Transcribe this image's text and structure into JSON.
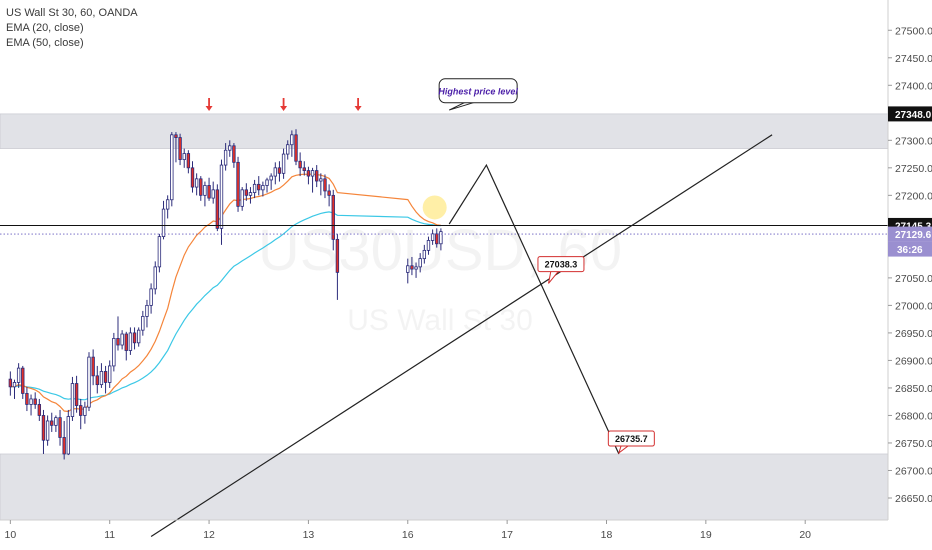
{
  "chart_title": "US Wall St 30, 60, OANDA",
  "indicators": [
    "EMA (20, close)",
    "EMA (50, close)"
  ],
  "watermark": {
    "symbol": "US30USD, 60",
    "name": "US Wall St 30"
  },
  "colors": {
    "up_candle": "#ffffff",
    "down_candle": "#e0312a",
    "candle_outline": "#2b2b7a",
    "ema20": "#f5853a",
    "ema50": "#3bc8e6",
    "zone_fill": "#dcdde3",
    "trend_line": "#222222",
    "arrow": "#e53935",
    "current_price_bg": "#9a8fd0",
    "callout_text": "#4b1fa8",
    "callout_red": "#d32f2f"
  },
  "chart_data": {
    "type": "candlestick",
    "symbol": "US Wall St 30",
    "timeframe": "60",
    "source": "OANDA",
    "x": {
      "ticks": [
        {
          "label": "10",
          "t": 0
        },
        {
          "label": "11",
          "t": 24
        },
        {
          "label": "12",
          "t": 48
        },
        {
          "label": "13",
          "t": 72
        },
        {
          "label": "16",
          "t": 96
        },
        {
          "label": "17",
          "t": 120
        },
        {
          "label": "18",
          "t": 144
        },
        {
          "label": "19",
          "t": 168
        },
        {
          "label": "20",
          "t": 192
        }
      ],
      "range": [
        -2.5,
        212
      ]
    },
    "y": {
      "range": [
        26610,
        27555
      ],
      "ticks": [
        26650,
        26700,
        26750,
        26800,
        26850,
        26900,
        26950,
        27000,
        27050,
        27100,
        27150,
        27200,
        27250,
        27300,
        27350,
        27400,
        27450,
        27500
      ]
    },
    "candles": [
      [
        26866,
        26880,
        26836,
        26852
      ],
      [
        26852,
        26865,
        26830,
        26860
      ],
      [
        26860,
        26895,
        26850,
        26886
      ],
      [
        26886,
        26890,
        26830,
        26840
      ],
      [
        26840,
        26852,
        26808,
        26820
      ],
      [
        26820,
        26838,
        26800,
        26830
      ],
      [
        26830,
        26842,
        26812,
        26820
      ],
      [
        26820,
        26830,
        26790,
        26800
      ],
      [
        26800,
        26810,
        26730,
        26755
      ],
      [
        26755,
        26800,
        26745,
        26790
      ],
      [
        26790,
        26805,
        26770,
        26782
      ],
      [
        26782,
        26800,
        26770,
        26796
      ],
      [
        26796,
        26810,
        26745,
        26760
      ],
      [
        26760,
        26790,
        26720,
        26730
      ],
      [
        26730,
        26810,
        26728,
        26798
      ],
      [
        26798,
        26870,
        26790,
        26858
      ],
      [
        26858,
        26872,
        26805,
        26818
      ],
      [
        26818,
        26830,
        26775,
        26800
      ],
      [
        26800,
        26825,
        26785,
        26815
      ],
      [
        26815,
        26915,
        26808,
        26906
      ],
      [
        26906,
        26920,
        26855,
        26872
      ],
      [
        26872,
        26890,
        26840,
        26856
      ],
      [
        26856,
        26895,
        26850,
        26880
      ],
      [
        26880,
        26890,
        26840,
        26860
      ],
      [
        26860,
        26900,
        26850,
        26890
      ],
      [
        26890,
        26950,
        26880,
        26940
      ],
      [
        26940,
        26980,
        26918,
        26928
      ],
      [
        26928,
        26955,
        26920,
        26948
      ],
      [
        26948,
        26952,
        26900,
        26918
      ],
      [
        26918,
        26960,
        26910,
        26950
      ],
      [
        26950,
        26960,
        26920,
        26932
      ],
      [
        26932,
        26960,
        26925,
        26955
      ],
      [
        26955,
        26990,
        26945,
        26980
      ],
      [
        26980,
        27010,
        26960,
        27000
      ],
      [
        27000,
        27040,
        26985,
        27030
      ],
      [
        27030,
        27080,
        27020,
        27070
      ],
      [
        27070,
        27130,
        27060,
        27125
      ],
      [
        27125,
        27190,
        27120,
        27175
      ],
      [
        27175,
        27200,
        27158,
        27192
      ],
      [
        27192,
        27315,
        27180,
        27310
      ],
      [
        27310,
        27315,
        27260,
        27305
      ],
      [
        27305,
        27312,
        27255,
        27265
      ],
      [
        27265,
        27285,
        27250,
        27276
      ],
      [
        27276,
        27282,
        27240,
        27250
      ],
      [
        27250,
        27262,
        27205,
        27215
      ],
      [
        27215,
        27240,
        27200,
        27230
      ],
      [
        27230,
        27235,
        27190,
        27200
      ],
      [
        27200,
        27225,
        27180,
        27218
      ],
      [
        27218,
        27232,
        27190,
        27195
      ],
      [
        27195,
        27225,
        27185,
        27210
      ],
      [
        27210,
        27220,
        27135,
        27140
      ],
      [
        27140,
        27265,
        27110,
        27255
      ],
      [
        27255,
        27295,
        27245,
        27282
      ],
      [
        27282,
        27300,
        27270,
        27290
      ],
      [
        27290,
        27295,
        27250,
        27260
      ],
      [
        27260,
        27270,
        27170,
        27180
      ],
      [
        27180,
        27215,
        27172,
        27210
      ],
      [
        27210,
        27222,
        27190,
        27200
      ],
      [
        27200,
        27215,
        27185,
        27205
      ],
      [
        27205,
        27228,
        27195,
        27220
      ],
      [
        27220,
        27235,
        27200,
        27210
      ],
      [
        27210,
        27225,
        27198,
        27218
      ],
      [
        27218,
        27232,
        27205,
        27228
      ],
      [
        27228,
        27240,
        27210,
        27235
      ],
      [
        27235,
        27260,
        27220,
        27250
      ],
      [
        27250,
        27262,
        27225,
        27240
      ],
      [
        27240,
        27285,
        27230,
        27275
      ],
      [
        27275,
        27300,
        27265,
        27292
      ],
      [
        27292,
        27318,
        27270,
        27310
      ],
      [
        27310,
        27320,
        27255,
        27262
      ],
      [
        27262,
        27278,
        27235,
        27250
      ],
      [
        27250,
        27262,
        27236,
        27245
      ],
      [
        27245,
        27252,
        27220,
        27235
      ],
      [
        27235,
        27250,
        27205,
        27245
      ],
      [
        27245,
        27255,
        27215,
        27226
      ],
      [
        27226,
        27240,
        27200,
        27230
      ],
      [
        27230,
        27238,
        27195,
        27208
      ],
      [
        27208,
        27220,
        27180,
        27200
      ],
      [
        27200,
        27210,
        27100,
        27120
      ],
      [
        27120,
        27130,
        27010,
        27060
      ],
      [
        27060,
        27085,
        27040,
        27072
      ],
      [
        27072,
        27088,
        27055,
        27066
      ],
      [
        27066,
        27078,
        27050,
        27070
      ],
      [
        27070,
        27095,
        27060,
        27085
      ],
      [
        27085,
        27110,
        27076,
        27100
      ],
      [
        27100,
        27125,
        27092,
        27118
      ],
      [
        27118,
        27138,
        27110,
        27130
      ],
      [
        27130,
        27140,
        27105,
        27112
      ],
      [
        27112,
        27140,
        27100,
        27134
      ]
    ],
    "annotations": {
      "resistance_zone": {
        "from": 27285,
        "to": 27348
      },
      "support_zone": {
        "from": 26600,
        "to": 26730
      },
      "price_lines": [
        {
          "price": 27145.3
        },
        {
          "price": 27129.6,
          "dotted": true
        }
      ],
      "top_arrows_t": [
        48,
        66,
        84
      ],
      "circle": {
        "t": 102.5,
        "price": 27178
      },
      "trend_line": [
        {
          "t": 34,
          "price": 26580
        },
        {
          "t": 184,
          "price": 27310
        }
      ],
      "projection_path": [
        {
          "t": 106,
          "price": 27148
        },
        {
          "t": 115,
          "price": 27255
        },
        {
          "t": 147,
          "price": 26730
        }
      ],
      "callouts": [
        {
          "text": "Highest price level",
          "t": 113,
          "price": 27390,
          "anchor_t": 106,
          "anchor_price": 27355
        },
        {
          "text": "27038.3",
          "t": 133,
          "price": 27075,
          "anchor_t": 130,
          "anchor_price": 27040
        },
        {
          "text": "26735.7",
          "t": 150,
          "price": 26758,
          "anchor_t": 147,
          "anchor_price": 26732
        }
      ]
    },
    "axis_labels": {
      "highlight_top": "27348.0",
      "highlight_line": "27145.3",
      "current_price": "27129.6",
      "countdown": "36:26"
    }
  }
}
